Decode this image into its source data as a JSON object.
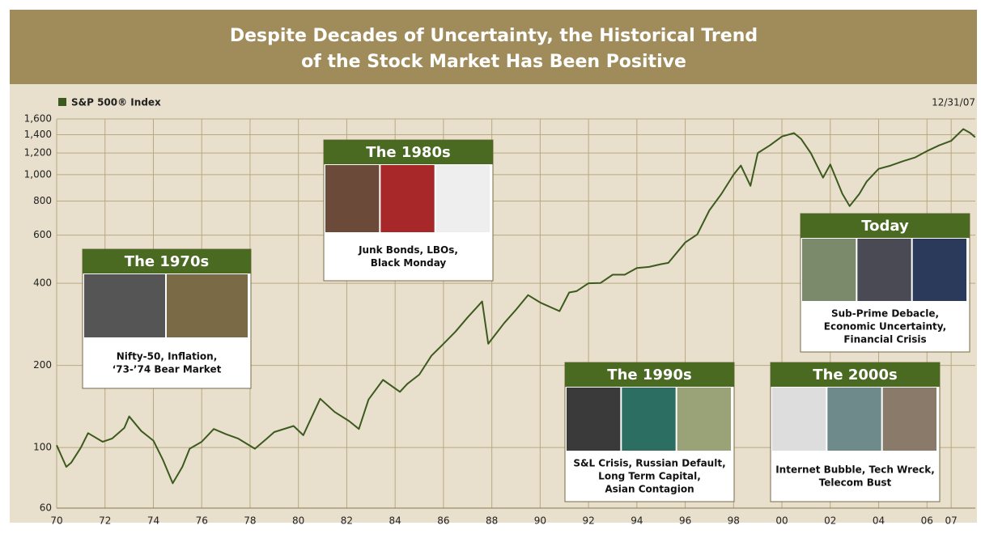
{
  "chart_data": {
    "type": "line",
    "title": [
      "Despite Decades of Uncertainty, the Historical Trend",
      "of the Stock Market Has Been Positive"
    ],
    "note": "12/31/07",
    "log_scale": true,
    "grid": true,
    "x": [
      1970,
      1970.4,
      1970.6,
      1971,
      1971.3,
      1971.9,
      1972.3,
      1972.8,
      1973,
      1973.5,
      1974,
      1974.4,
      1974.8,
      1975.2,
      1975.5,
      1976,
      1976.5,
      1977,
      1977.5,
      1978.2,
      1978.7,
      1979,
      1979.8,
      1980.2,
      1980.9,
      1981.5,
      1982.1,
      1982.5,
      1982.9,
      1983.5,
      1984.2,
      1984.5,
      1985,
      1985.5,
      1986,
      1986.5,
      1987,
      1987.6,
      1987.85,
      1988.5,
      1989,
      1989.5,
      1990,
      1990.8,
      1991.2,
      1991.5,
      1992,
      1992.5,
      1993,
      1993.5,
      1994,
      1994.5,
      1995,
      1995.3,
      1996,
      1996.5,
      1997,
      1997.5,
      1998,
      1998.3,
      1998.7,
      1999,
      1999.5,
      2000,
      2000.5,
      2000.8,
      2001.2,
      2001.7,
      2002,
      2002.5,
      2002.8,
      2003.2,
      2003.5,
      2004,
      2004.5,
      2005,
      2005.5,
      2006,
      2006.5,
      2007,
      2007.5,
      2007.8,
      2007.99
    ],
    "series": [
      {
        "name": "S&P 500® Index",
        "color": "#3d5a1e",
        "values": [
          102,
          85,
          88,
          100,
          113,
          105,
          108,
          118,
          130,
          115,
          106,
          90,
          74,
          85,
          99,
          105,
          117,
          112,
          108,
          99,
          108,
          114,
          120,
          111,
          151,
          135,
          125,
          117,
          150,
          177,
          160,
          171,
          185,
          217,
          240,
          266,
          300,
          343,
          240,
          285,
          320,
          362,
          340,
          316,
          370,
          374,
          400,
          401,
          430,
          430,
          455,
          459,
          470,
          475,
          564,
          604,
          740,
          851,
          1000,
          1080,
          910,
          1200,
          1280,
          1380,
          1420,
          1350,
          1197,
          975,
          1090,
          851,
          767,
          850,
          942,
          1050,
          1080,
          1120,
          1155,
          1220,
          1280,
          1330,
          1469,
          1420,
          1371
        ]
      }
    ],
    "xlim": [
      1970,
      2008
    ],
    "ylim": [
      60,
      1600
    ],
    "xticks": [
      {
        "value": 1970,
        "label": "70"
      },
      {
        "value": 1972,
        "label": "72"
      },
      {
        "value": 1974,
        "label": "74"
      },
      {
        "value": 1976,
        "label": "76"
      },
      {
        "value": 1978,
        "label": "78"
      },
      {
        "value": 1980,
        "label": "80"
      },
      {
        "value": 1982,
        "label": "82"
      },
      {
        "value": 1984,
        "label": "84"
      },
      {
        "value": 1986,
        "label": "86"
      },
      {
        "value": 1988,
        "label": "88"
      },
      {
        "value": 1990,
        "label": "90"
      },
      {
        "value": 1992,
        "label": "92"
      },
      {
        "value": 1994,
        "label": "94"
      },
      {
        "value": 1996,
        "label": "96"
      },
      {
        "value": 1998,
        "label": "98"
      },
      {
        "value": 2000,
        "label": "00"
      },
      {
        "value": 2002,
        "label": "02"
      },
      {
        "value": 2004,
        "label": "04"
      },
      {
        "value": 2006,
        "label": "06"
      },
      {
        "value": 2007,
        "label": "07"
      }
    ],
    "yticks": [
      60,
      100,
      200,
      400,
      600,
      800,
      {
        "value": 1000,
        "label": "1,000"
      },
      {
        "value": 1200,
        "label": "1,200"
      },
      {
        "value": 1400,
        "label": "1,400"
      },
      {
        "value": 1600,
        "label": "1,600"
      }
    ],
    "annotations": [
      {
        "title": "The 1970s",
        "text": [
          "Nifty-50, Inflation,",
          "‘73-’74 Bear Market"
        ]
      },
      {
        "title": "The 1980s",
        "text": [
          "Junk Bonds, LBOs,",
          "Black Monday"
        ]
      },
      {
        "title": "The 1990s",
        "text": [
          "S&L Crisis, Russian Default,",
          "Long Term Capital,",
          "Asian Contagion"
        ]
      },
      {
        "title": "Today",
        "text": [
          "Sub-Prime Debacle,",
          "Economic Uncertainty,",
          "Financial Crisis"
        ]
      },
      {
        "title": "The 2000s",
        "text": [
          "Internet Bubble, Tech Wreck,",
          "Telecom Bust"
        ]
      }
    ]
  }
}
